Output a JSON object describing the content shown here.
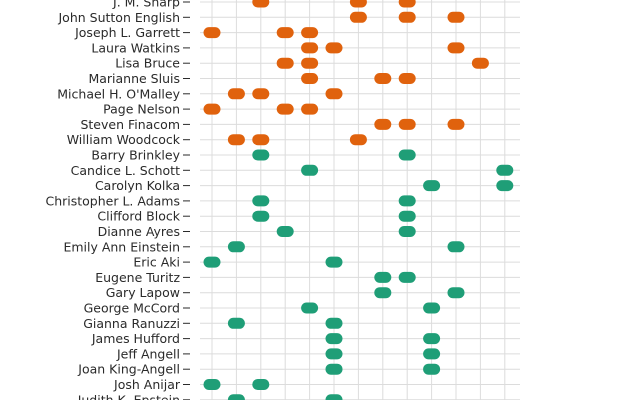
{
  "chart_data": {
    "type": "scatter",
    "note_categories_top_to_bottom": true,
    "x_columns": [
      0,
      1,
      2,
      3,
      4,
      5,
      6,
      7,
      8,
      9,
      10,
      11,
      12
    ],
    "colors": {
      "orange": "#e0620d",
      "green": "#1f9e77"
    },
    "rows": [
      {
        "name": "J. M. Sharp",
        "group": "orange",
        "points": [
          2,
          6,
          8
        ]
      },
      {
        "name": "John Sutton English",
        "group": "orange",
        "points": [
          6,
          8,
          10
        ]
      },
      {
        "name": "Joseph L. Garrett",
        "group": "orange",
        "points": [
          0,
          3,
          4
        ]
      },
      {
        "name": "Laura Watkins",
        "group": "orange",
        "points": [
          4,
          5,
          10
        ]
      },
      {
        "name": "Lisa Bruce",
        "group": "orange",
        "points": [
          3,
          4,
          11
        ]
      },
      {
        "name": "Marianne Sluis",
        "group": "orange",
        "points": [
          4,
          7,
          8
        ]
      },
      {
        "name": "Michael H. O'Malley",
        "group": "orange",
        "points": [
          1,
          2,
          5
        ]
      },
      {
        "name": "Page Nelson",
        "group": "orange",
        "points": [
          0,
          3,
          4
        ]
      },
      {
        "name": "Steven Finacom",
        "group": "orange",
        "points": [
          7,
          8,
          10
        ]
      },
      {
        "name": "William Woodcock",
        "group": "orange",
        "points": [
          1,
          2,
          6
        ]
      },
      {
        "name": "Barry Brinkley",
        "group": "green",
        "points": [
          2,
          8
        ]
      },
      {
        "name": "Candice L. Schott",
        "group": "green",
        "points": [
          4,
          12
        ]
      },
      {
        "name": "Carolyn Kolka",
        "group": "green",
        "points": [
          9,
          12
        ]
      },
      {
        "name": "Christopher L. Adams",
        "group": "green",
        "points": [
          2,
          8
        ]
      },
      {
        "name": "Clifford Block",
        "group": "green",
        "points": [
          2,
          8
        ]
      },
      {
        "name": "Dianne Ayres",
        "group": "green",
        "points": [
          3,
          8
        ]
      },
      {
        "name": "Emily Ann Einstein",
        "group": "green",
        "points": [
          1,
          10
        ]
      },
      {
        "name": "Eric Aki",
        "group": "green",
        "points": [
          0,
          5
        ]
      },
      {
        "name": "Eugene Turitz",
        "group": "green",
        "points": [
          7,
          8
        ]
      },
      {
        "name": "Gary Lapow",
        "group": "green",
        "points": [
          7,
          10
        ]
      },
      {
        "name": "George McCord",
        "group": "green",
        "points": [
          4,
          9
        ]
      },
      {
        "name": "Gianna Ranuzzi",
        "group": "green",
        "points": [
          1,
          5
        ]
      },
      {
        "name": "James Hufford",
        "group": "green",
        "points": [
          5,
          9
        ]
      },
      {
        "name": "Jeff Angell",
        "group": "green",
        "points": [
          5,
          9
        ]
      },
      {
        "name": "Joan King-Angell",
        "group": "green",
        "points": [
          5,
          9
        ]
      },
      {
        "name": "Josh Anijar",
        "group": "green",
        "points": [
          0,
          2
        ]
      },
      {
        "name": "Judith K. Epstein",
        "group": "green",
        "points": [
          1,
          5
        ]
      }
    ]
  }
}
